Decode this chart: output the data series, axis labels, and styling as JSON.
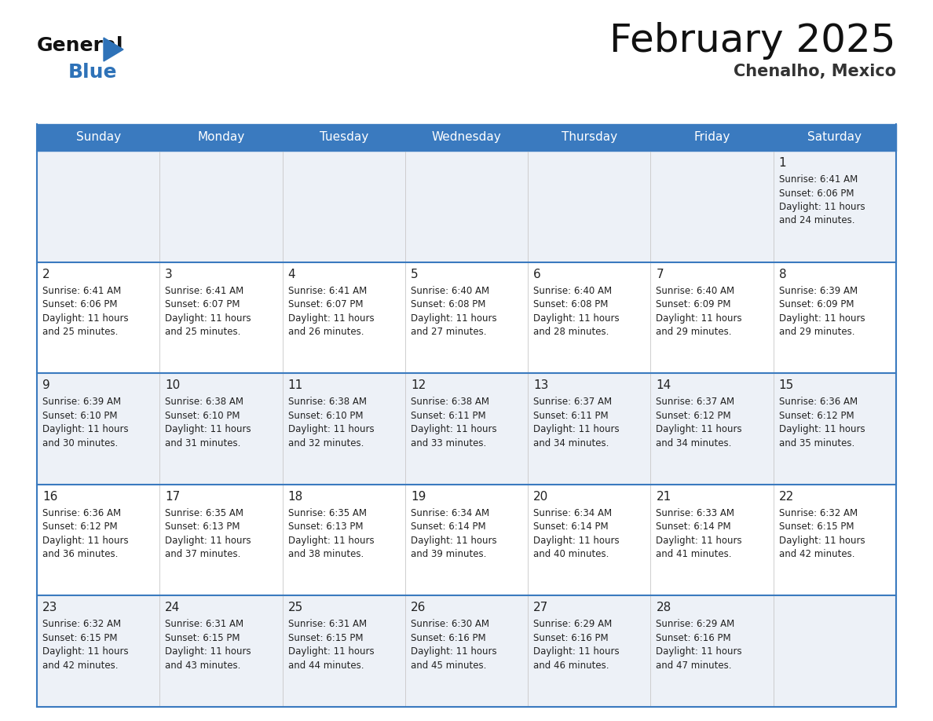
{
  "title": "February 2025",
  "subtitle": "Chenalho, Mexico",
  "header_bg_color": "#3a7abf",
  "header_text_color": "#ffffff",
  "row_bg_odd": "#edf1f7",
  "row_bg_even": "#ffffff",
  "border_color": "#3a7abf",
  "text_color": "#222222",
  "days_of_week": [
    "Sunday",
    "Monday",
    "Tuesday",
    "Wednesday",
    "Thursday",
    "Friday",
    "Saturday"
  ],
  "weeks": [
    [
      {
        "day": null,
        "info": null
      },
      {
        "day": null,
        "info": null
      },
      {
        "day": null,
        "info": null
      },
      {
        "day": null,
        "info": null
      },
      {
        "day": null,
        "info": null
      },
      {
        "day": null,
        "info": null
      },
      {
        "day": "1",
        "info": "Sunrise: 6:41 AM\nSunset: 6:06 PM\nDaylight: 11 hours\nand 24 minutes."
      }
    ],
    [
      {
        "day": "2",
        "info": "Sunrise: 6:41 AM\nSunset: 6:06 PM\nDaylight: 11 hours\nand 25 minutes."
      },
      {
        "day": "3",
        "info": "Sunrise: 6:41 AM\nSunset: 6:07 PM\nDaylight: 11 hours\nand 25 minutes."
      },
      {
        "day": "4",
        "info": "Sunrise: 6:41 AM\nSunset: 6:07 PM\nDaylight: 11 hours\nand 26 minutes."
      },
      {
        "day": "5",
        "info": "Sunrise: 6:40 AM\nSunset: 6:08 PM\nDaylight: 11 hours\nand 27 minutes."
      },
      {
        "day": "6",
        "info": "Sunrise: 6:40 AM\nSunset: 6:08 PM\nDaylight: 11 hours\nand 28 minutes."
      },
      {
        "day": "7",
        "info": "Sunrise: 6:40 AM\nSunset: 6:09 PM\nDaylight: 11 hours\nand 29 minutes."
      },
      {
        "day": "8",
        "info": "Sunrise: 6:39 AM\nSunset: 6:09 PM\nDaylight: 11 hours\nand 29 minutes."
      }
    ],
    [
      {
        "day": "9",
        "info": "Sunrise: 6:39 AM\nSunset: 6:10 PM\nDaylight: 11 hours\nand 30 minutes."
      },
      {
        "day": "10",
        "info": "Sunrise: 6:38 AM\nSunset: 6:10 PM\nDaylight: 11 hours\nand 31 minutes."
      },
      {
        "day": "11",
        "info": "Sunrise: 6:38 AM\nSunset: 6:10 PM\nDaylight: 11 hours\nand 32 minutes."
      },
      {
        "day": "12",
        "info": "Sunrise: 6:38 AM\nSunset: 6:11 PM\nDaylight: 11 hours\nand 33 minutes."
      },
      {
        "day": "13",
        "info": "Sunrise: 6:37 AM\nSunset: 6:11 PM\nDaylight: 11 hours\nand 34 minutes."
      },
      {
        "day": "14",
        "info": "Sunrise: 6:37 AM\nSunset: 6:12 PM\nDaylight: 11 hours\nand 34 minutes."
      },
      {
        "day": "15",
        "info": "Sunrise: 6:36 AM\nSunset: 6:12 PM\nDaylight: 11 hours\nand 35 minutes."
      }
    ],
    [
      {
        "day": "16",
        "info": "Sunrise: 6:36 AM\nSunset: 6:12 PM\nDaylight: 11 hours\nand 36 minutes."
      },
      {
        "day": "17",
        "info": "Sunrise: 6:35 AM\nSunset: 6:13 PM\nDaylight: 11 hours\nand 37 minutes."
      },
      {
        "day": "18",
        "info": "Sunrise: 6:35 AM\nSunset: 6:13 PM\nDaylight: 11 hours\nand 38 minutes."
      },
      {
        "day": "19",
        "info": "Sunrise: 6:34 AM\nSunset: 6:14 PM\nDaylight: 11 hours\nand 39 minutes."
      },
      {
        "day": "20",
        "info": "Sunrise: 6:34 AM\nSunset: 6:14 PM\nDaylight: 11 hours\nand 40 minutes."
      },
      {
        "day": "21",
        "info": "Sunrise: 6:33 AM\nSunset: 6:14 PM\nDaylight: 11 hours\nand 41 minutes."
      },
      {
        "day": "22",
        "info": "Sunrise: 6:32 AM\nSunset: 6:15 PM\nDaylight: 11 hours\nand 42 minutes."
      }
    ],
    [
      {
        "day": "23",
        "info": "Sunrise: 6:32 AM\nSunset: 6:15 PM\nDaylight: 11 hours\nand 42 minutes."
      },
      {
        "day": "24",
        "info": "Sunrise: 6:31 AM\nSunset: 6:15 PM\nDaylight: 11 hours\nand 43 minutes."
      },
      {
        "day": "25",
        "info": "Sunrise: 6:31 AM\nSunset: 6:15 PM\nDaylight: 11 hours\nand 44 minutes."
      },
      {
        "day": "26",
        "info": "Sunrise: 6:30 AM\nSunset: 6:16 PM\nDaylight: 11 hours\nand 45 minutes."
      },
      {
        "day": "27",
        "info": "Sunrise: 6:29 AM\nSunset: 6:16 PM\nDaylight: 11 hours\nand 46 minutes."
      },
      {
        "day": "28",
        "info": "Sunrise: 6:29 AM\nSunset: 6:16 PM\nDaylight: 11 hours\nand 47 minutes."
      },
      {
        "day": null,
        "info": null
      }
    ]
  ],
  "logo_general_color": "#111111",
  "logo_blue_color": "#2e72b8",
  "logo_triangle_color": "#2e72b8",
  "title_color": "#111111",
  "subtitle_color": "#333333",
  "title_fontsize": 36,
  "subtitle_fontsize": 15,
  "header_fontsize": 11,
  "day_num_fontsize": 11,
  "info_fontsize": 8.5
}
